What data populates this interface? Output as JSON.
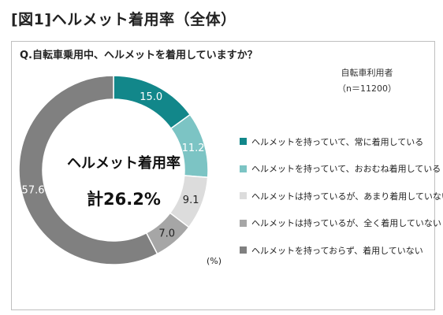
{
  "header": {
    "title": "[図1]ヘルメット着用率（全体）"
  },
  "question": "Q.自転車乗用中、ヘルメットを着用していますか？",
  "meta": {
    "respondents": "自転車利用者",
    "sample": "（n＝11200）"
  },
  "center": {
    "title": "ヘルメット着用率",
    "total": "計26.2%"
  },
  "unit": "(%)",
  "colors": {
    "s1": "#12878a",
    "s2": "#7cc4c4",
    "s3": "#dcdcdc",
    "s4": "#a6a6a6",
    "s5": "#808080"
  },
  "chart_data": {
    "type": "pie",
    "style": "donut",
    "legend_placement": "right",
    "series": [
      {
        "name": "ヘルメットを持っていて、常に着用している",
        "value": 15.0,
        "label": "15.0",
        "color": "#12878a",
        "label_color": "#ffffff"
      },
      {
        "name": "ヘルメットを持っていて、おおむね着用している",
        "value": 11.2,
        "label": "11.2",
        "color": "#7cc4c4",
        "label_color": "#ffffff"
      },
      {
        "name": "ヘルメットは持っているが、あまり着用していない",
        "value": 9.1,
        "label": "9.1",
        "color": "#dcdcdc",
        "label_color": "#222222"
      },
      {
        "name": "ヘルメットは持っているが、全く着用していない",
        "value": 7.0,
        "label": "7.0",
        "color": "#a6a6a6",
        "label_color": "#222222"
      },
      {
        "name": "ヘルメットを持っておらず、着用していない",
        "value": 57.6,
        "label": "57.6",
        "color": "#808080",
        "label_color": "#ffffff"
      }
    ]
  }
}
